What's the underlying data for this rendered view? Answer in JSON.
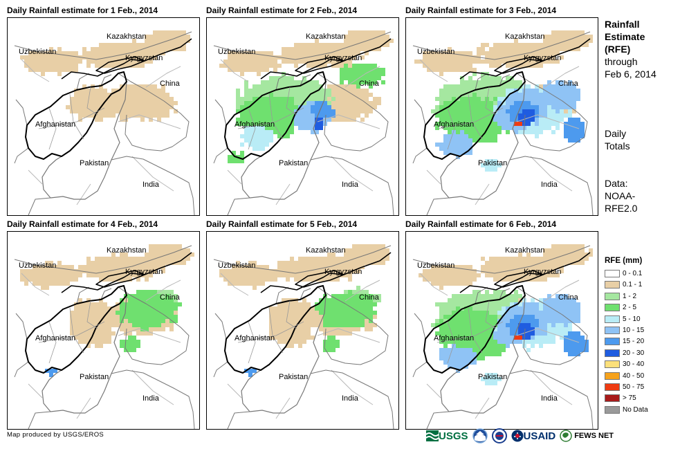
{
  "panels": [
    {
      "title": "Daily Rainfall estimate for 1 Feb., 2014",
      "intensity": 0
    },
    {
      "title": "Daily Rainfall estimate for 2 Feb., 2014",
      "intensity": 2
    },
    {
      "title": "Daily Rainfall estimate for 3 Feb., 2014",
      "intensity": 3
    },
    {
      "title": "Daily Rainfall estimate for 4 Feb., 2014",
      "intensity": 1
    },
    {
      "title": "Daily Rainfall estimate for 5 Feb., 2014",
      "intensity": 1
    },
    {
      "title": "Daily Rainfall estimate for 6 Feb., 2014",
      "intensity": 3
    }
  ],
  "map_labels": {
    "kazakhstan": "Kazakhstan",
    "uzbekistan": "Uzbekistan",
    "kyrgyzstan": "Kyrgyzstan",
    "china": "China",
    "afghanistan": "Afghanistan",
    "pakistan": "Pakistan",
    "india": "India"
  },
  "sidebar": {
    "heading_line1": "Rainfall",
    "heading_line2": "Estimate",
    "heading_line3": "(RFE)",
    "through_line1": "through",
    "through_line2": "Feb 6, 2014",
    "daily_line1": "Daily",
    "daily_line2": "Totals",
    "data_line1": "Data:",
    "data_line2": "NOAA-",
    "data_line3": "RFE2.0"
  },
  "legend": {
    "title": "RFE (mm)",
    "items": [
      {
        "label": "0 - 0.1",
        "color": "#ffffff"
      },
      {
        "label": "0.1 - 1",
        "color": "#e8cfa6"
      },
      {
        "label": "1 - 2",
        "color": "#a5e7a0"
      },
      {
        "label": "2 - 5",
        "color": "#6fe06f"
      },
      {
        "label": "5 - 10",
        "color": "#b9ecf6"
      },
      {
        "label": "10 - 15",
        "color": "#8fc3f5"
      },
      {
        "label": "15 - 20",
        "color": "#4d9aee"
      },
      {
        "label": "20 - 30",
        "color": "#1f5ce0"
      },
      {
        "label": "30 - 40",
        "color": "#fce07a"
      },
      {
        "label": "40 - 50",
        "color": "#f6a21b"
      },
      {
        "label": "50 - 75",
        "color": "#ef3b12"
      },
      {
        "label": "> 75",
        "color": "#a81a1a"
      },
      {
        "label": "No Data",
        "color": "#9a9a9a"
      }
    ]
  },
  "footer": {
    "credit": "Map produced by USGS/EROS",
    "logo_usgs": "USGS",
    "logo_usaid": "USAID",
    "logo_fews": "FEWS NET"
  }
}
